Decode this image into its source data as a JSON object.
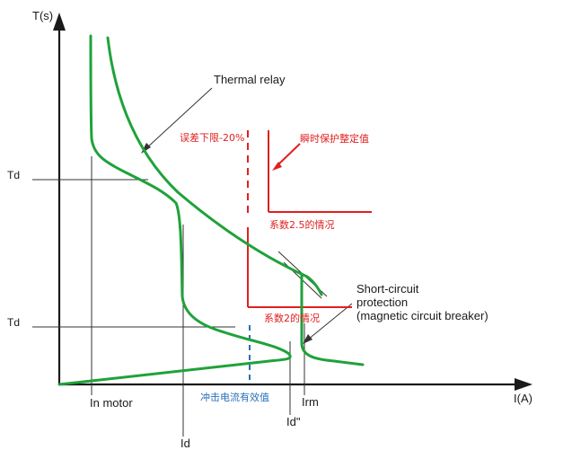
{
  "axes": {
    "y_label": "T(s)",
    "x_label": "I(A)"
  },
  "ticks": {
    "td_upper": "Td",
    "td_lower": "Td",
    "in_motor": "In motor",
    "id": "Id",
    "id_peak": "Id\"",
    "irm": "Irm"
  },
  "annotations": {
    "thermal_relay": "Thermal relay",
    "short_circuit_line1": "Short-circuit",
    "short_circuit_line2": "protection",
    "short_circuit_line3": "(magnetic circuit breaker)",
    "error_lower_limit": "误差下限-20%",
    "instant_setting": "瞬时保护整定值",
    "factor_2_5": "系数2.5的情况",
    "factor_2": "系数2的情况",
    "inrush_rms": "冲击电流有效值"
  },
  "colors": {
    "axis": "#1a1a1a",
    "curve_green": "#1fa23a",
    "red": "#e02020",
    "blue": "#2a6fb8",
    "guide": "#333333"
  }
}
